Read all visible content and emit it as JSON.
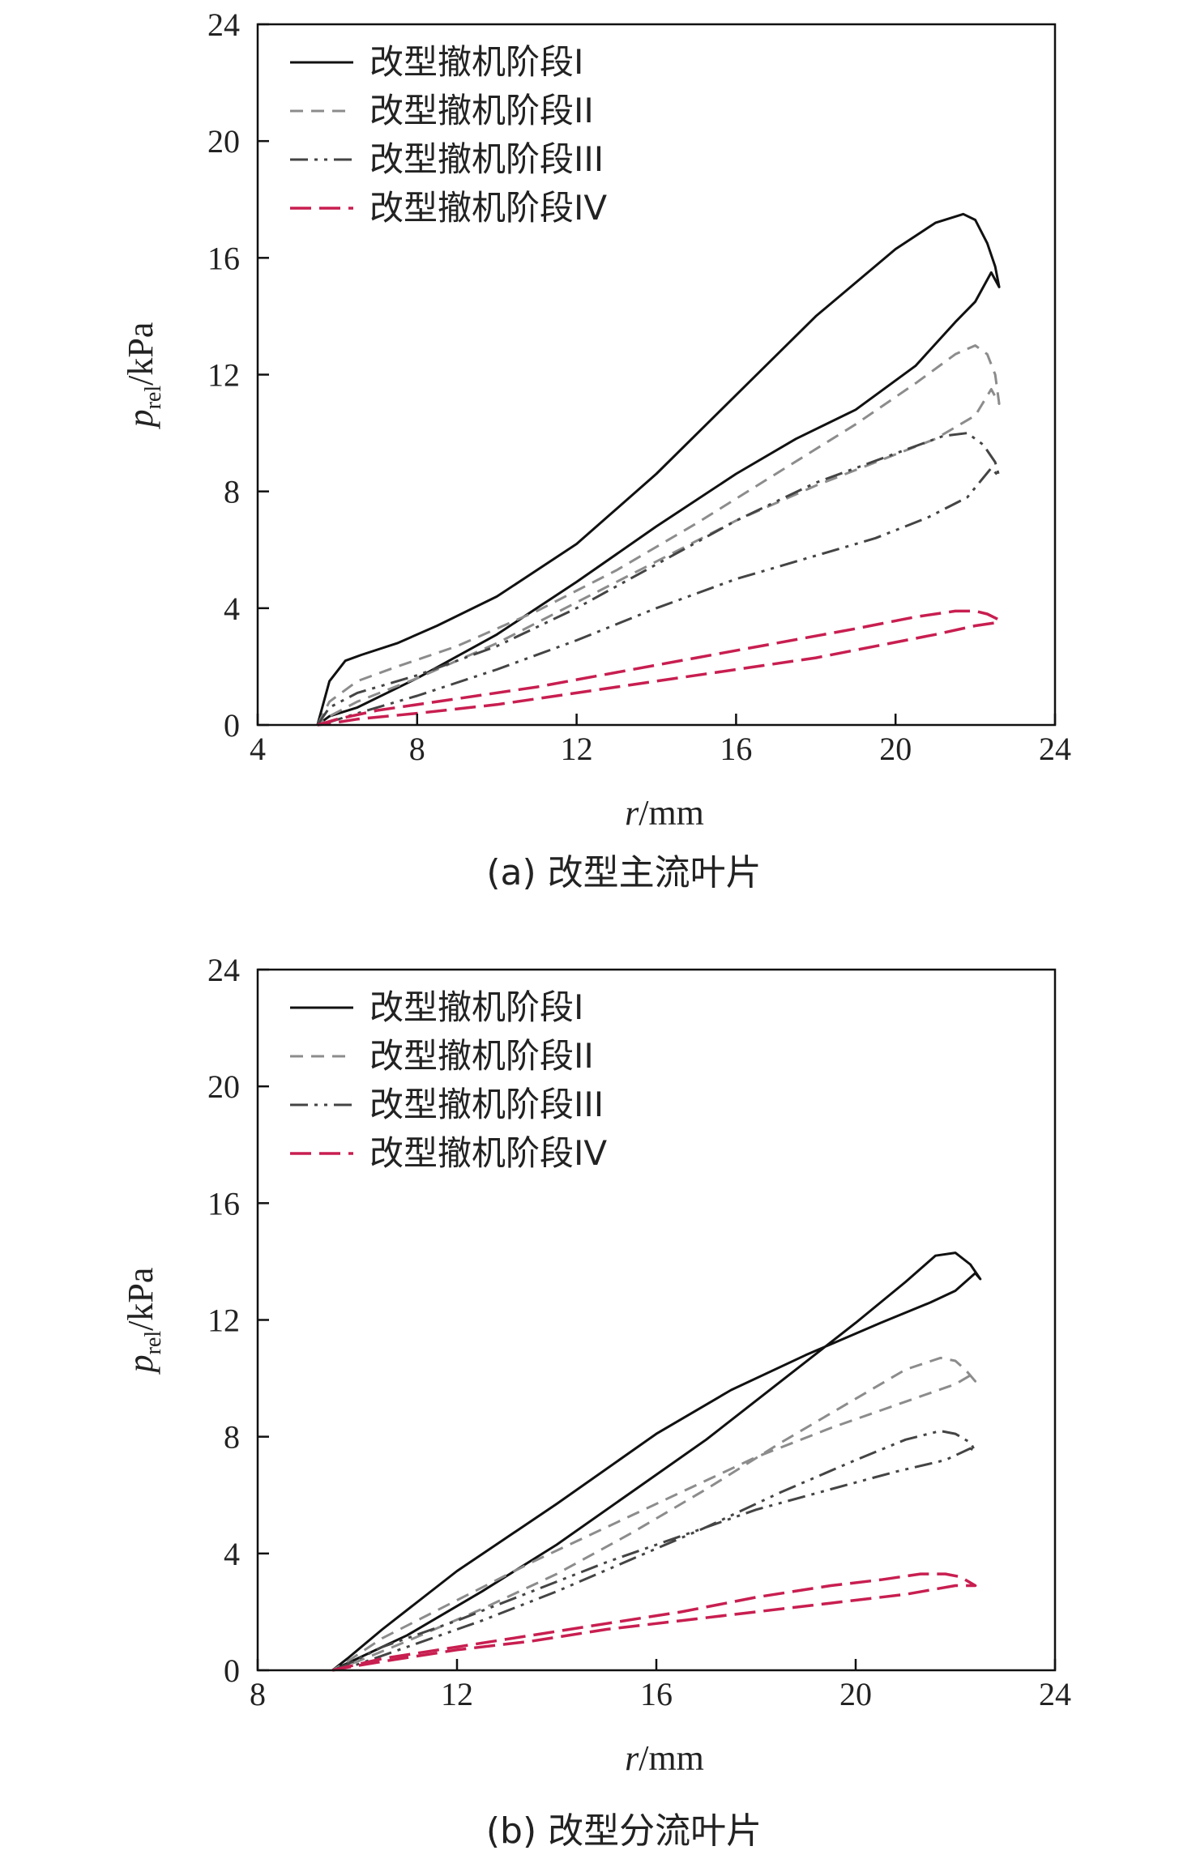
{
  "legend_labels": [
    "改型撤机阶段I",
    "改型撤机阶段II",
    "改型撤机阶段III",
    "改型撤机阶段IV"
  ],
  "series_styles": [
    {
      "color": "#111111",
      "dash": "none",
      "width": 3
    },
    {
      "color": "#8c8c8c",
      "dash": "16,10",
      "width": 3
    },
    {
      "color": "#444444",
      "dash": "22,8,4,8,4,8",
      "width": 3
    },
    {
      "color": "#c81e50",
      "dash": "26,10",
      "width": 3.5
    }
  ],
  "chart_data": [
    {
      "type": "line",
      "caption": "(a) 改型主流叶片",
      "xlabel_italic": "r",
      "xlabel_unit": "/mm",
      "ylabel_italic": "p",
      "ylabel_sub": "rel",
      "ylabel_unit": "/kPa",
      "xlim": [
        4,
        24
      ],
      "ylim": [
        0,
        24
      ],
      "xticks": [
        4,
        8,
        12,
        16,
        20,
        24
      ],
      "yticks": [
        0,
        4,
        8,
        12,
        16,
        20,
        24
      ],
      "legend_position": "top-left",
      "grid": false,
      "series": [
        {
          "name": "改型撤机阶段I",
          "x": [
            5.5,
            5.8,
            6.2,
            6.6,
            7.5,
            8.5,
            10,
            12,
            14,
            16,
            18,
            20,
            21,
            21.7,
            22.0,
            22.3,
            22.5,
            22.6,
            22.4,
            22.0,
            21.5,
            20.5,
            19.0,
            17.5,
            16.0,
            14.0,
            12.0,
            10.0,
            8.0,
            6.5,
            5.8,
            5.5
          ],
          "y": [
            0,
            1.5,
            2.2,
            2.4,
            2.8,
            3.4,
            4.4,
            6.2,
            8.6,
            11.3,
            14.0,
            16.3,
            17.2,
            17.5,
            17.3,
            16.5,
            15.7,
            15.0,
            15.5,
            14.5,
            13.8,
            12.3,
            10.8,
            9.8,
            8.6,
            6.8,
            4.9,
            3.1,
            1.6,
            0.6,
            0.3,
            0
          ]
        },
        {
          "name": "改型撤机阶段II",
          "x": [
            5.5,
            5.8,
            6.5,
            7.5,
            9,
            11,
            13,
            15,
            17,
            19,
            20.5,
            21.5,
            22.0,
            22.3,
            22.5,
            22.6,
            22.4,
            22.0,
            21.0,
            19.5,
            18.0,
            16.0,
            14.0,
            12.0,
            10.0,
            8.0,
            6.5,
            5.8,
            5.5
          ],
          "y": [
            0,
            0.8,
            1.5,
            2.0,
            2.7,
            3.9,
            5.3,
            6.9,
            8.6,
            10.3,
            11.7,
            12.7,
            13.0,
            12.7,
            12.0,
            11.0,
            11.5,
            10.6,
            9.8,
            9.0,
            8.2,
            7.0,
            5.6,
            4.2,
            2.8,
            1.6,
            0.8,
            0.3,
            0
          ]
        },
        {
          "name": "改型撤机阶段III",
          "x": [
            5.5,
            5.8,
            6.5,
            8,
            10,
            12,
            14,
            16,
            18,
            20,
            21.2,
            21.8,
            22.2,
            22.5,
            22.6,
            22.4,
            21.8,
            20.8,
            19.5,
            18.0,
            16.0,
            14.0,
            12.0,
            10.0,
            8.0,
            6.5,
            5.8,
            5.5
          ],
          "y": [
            0,
            0.6,
            1.1,
            1.7,
            2.7,
            4.0,
            5.5,
            7.0,
            8.3,
            9.3,
            9.9,
            10.0,
            9.6,
            9.0,
            8.5,
            8.8,
            7.8,
            7.1,
            6.4,
            5.8,
            5.0,
            4.0,
            2.9,
            1.9,
            1.0,
            0.4,
            0.1,
            0
          ]
        },
        {
          "name": "改型撤机阶段IV",
          "x": [
            5.5,
            6.0,
            7.0,
            9,
            11,
            13,
            15,
            17,
            19,
            20.5,
            21.5,
            22.0,
            22.3,
            22.6,
            22.5,
            22.0,
            21.0,
            19.5,
            18.0,
            16.0,
            14.0,
            12.0,
            10.0,
            8.0,
            6.5,
            5.8,
            5.5
          ],
          "y": [
            0,
            0.2,
            0.5,
            0.9,
            1.3,
            1.8,
            2.3,
            2.8,
            3.3,
            3.7,
            3.9,
            3.9,
            3.8,
            3.6,
            3.5,
            3.4,
            3.1,
            2.7,
            2.3,
            1.9,
            1.5,
            1.1,
            0.7,
            0.4,
            0.2,
            0.05,
            0
          ]
        }
      ]
    },
    {
      "type": "line",
      "caption": "(b) 改型分流叶片",
      "xlabel_italic": "r",
      "xlabel_unit": "/mm",
      "ylabel_italic": "p",
      "ylabel_sub": "rel",
      "ylabel_unit": "/kPa",
      "xlim": [
        8,
        24
      ],
      "ylim": [
        0,
        24
      ],
      "xticks": [
        8,
        12,
        16,
        20,
        24
      ],
      "yticks": [
        0,
        4,
        8,
        12,
        16,
        20,
        24
      ],
      "legend_position": "top-left",
      "grid": false,
      "series": [
        {
          "name": "改型撤机阶段I",
          "x": [
            9.5,
            10.0,
            11.0,
            12.5,
            14.0,
            15.5,
            17.0,
            18.5,
            20.0,
            21.0,
            21.6,
            22.0,
            22.3,
            22.5,
            22.4,
            22.0,
            21.5,
            20.5,
            19.0,
            17.5,
            16.0,
            14.0,
            12.0,
            10.5,
            9.8,
            9.5
          ],
          "y": [
            0,
            0.4,
            1.2,
            2.7,
            4.3,
            6.1,
            7.9,
            9.9,
            11.9,
            13.3,
            14.2,
            14.3,
            13.9,
            13.4,
            13.6,
            13.0,
            12.6,
            11.9,
            10.8,
            9.6,
            8.1,
            5.7,
            3.4,
            1.4,
            0.4,
            0
          ]
        },
        {
          "name": "改型撤机阶段II",
          "x": [
            9.5,
            10.0,
            11.0,
            12.5,
            14.0,
            15.5,
            17.0,
            18.5,
            20.0,
            21.0,
            21.7,
            22.0,
            22.2,
            22.4,
            22.3,
            22.0,
            21.0,
            19.5,
            18.0,
            16.5,
            15.0,
            13.5,
            12.0,
            10.5,
            9.8,
            9.5
          ],
          "y": [
            0,
            0.3,
            1.0,
            2.1,
            3.3,
            4.7,
            6.2,
            7.8,
            9.3,
            10.3,
            10.7,
            10.6,
            10.3,
            9.9,
            10.1,
            9.8,
            9.2,
            8.3,
            7.3,
            6.1,
            4.9,
            3.7,
            2.4,
            1.1,
            0.3,
            0
          ]
        },
        {
          "name": "改型撤机阶段III",
          "x": [
            9.5,
            10.0,
            11.0,
            12.5,
            14.0,
            15.5,
            17.0,
            18.5,
            20.0,
            21.0,
            21.7,
            22.0,
            22.3,
            22.4,
            22.3,
            21.8,
            20.8,
            19.5,
            18.0,
            16.5,
            15.0,
            13.5,
            12.0,
            10.5,
            9.8,
            9.5
          ],
          "y": [
            0,
            0.2,
            0.8,
            1.7,
            2.7,
            3.8,
            4.9,
            6.1,
            7.2,
            7.9,
            8.2,
            8.1,
            7.8,
            7.5,
            7.6,
            7.2,
            6.8,
            6.2,
            5.5,
            4.6,
            3.7,
            2.7,
            1.7,
            0.8,
            0.2,
            0
          ]
        },
        {
          "name": "改型撤机阶段IV",
          "x": [
            9.5,
            10.5,
            12.0,
            13.5,
            15.0,
            16.5,
            18.0,
            19.5,
            20.5,
            21.3,
            21.8,
            22.1,
            22.3,
            22.4,
            22.0,
            21.0,
            19.5,
            18.0,
            16.5,
            15.0,
            13.5,
            12.0,
            10.5,
            9.8,
            9.5
          ],
          "y": [
            0,
            0.4,
            0.8,
            1.2,
            1.6,
            2.0,
            2.5,
            2.9,
            3.1,
            3.3,
            3.3,
            3.2,
            3.0,
            2.9,
            2.9,
            2.6,
            2.3,
            2.0,
            1.7,
            1.4,
            1.0,
            0.7,
            0.3,
            0.1,
            0
          ]
        }
      ]
    }
  ]
}
